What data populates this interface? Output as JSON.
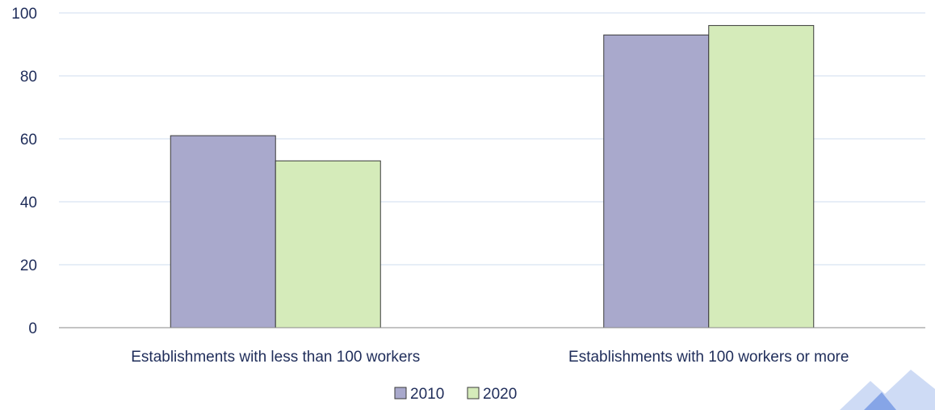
{
  "chart_data": {
    "type": "bar",
    "categories": [
      "Establishments with less than 100 workers",
      "Establishments with 100 workers or more"
    ],
    "series": [
      {
        "name": "2010",
        "values": [
          61,
          93
        ],
        "color": "#a9a9cc"
      },
      {
        "name": "2020",
        "values": [
          53,
          96
        ],
        "color": "#d5ebba"
      }
    ],
    "title": "",
    "xlabel": "",
    "ylabel": "",
    "ylim": [
      0,
      100
    ],
    "yticks": [
      0,
      20,
      40,
      60,
      80,
      100
    ],
    "grid": true,
    "legend_position": "bottom-center",
    "colors": {
      "text": "#1f2d5a",
      "grid": "#cfdcef",
      "axis": "#8a8a8a",
      "bar_edge": "#3a3a3a",
      "watermark": "#3d6fd9"
    }
  }
}
